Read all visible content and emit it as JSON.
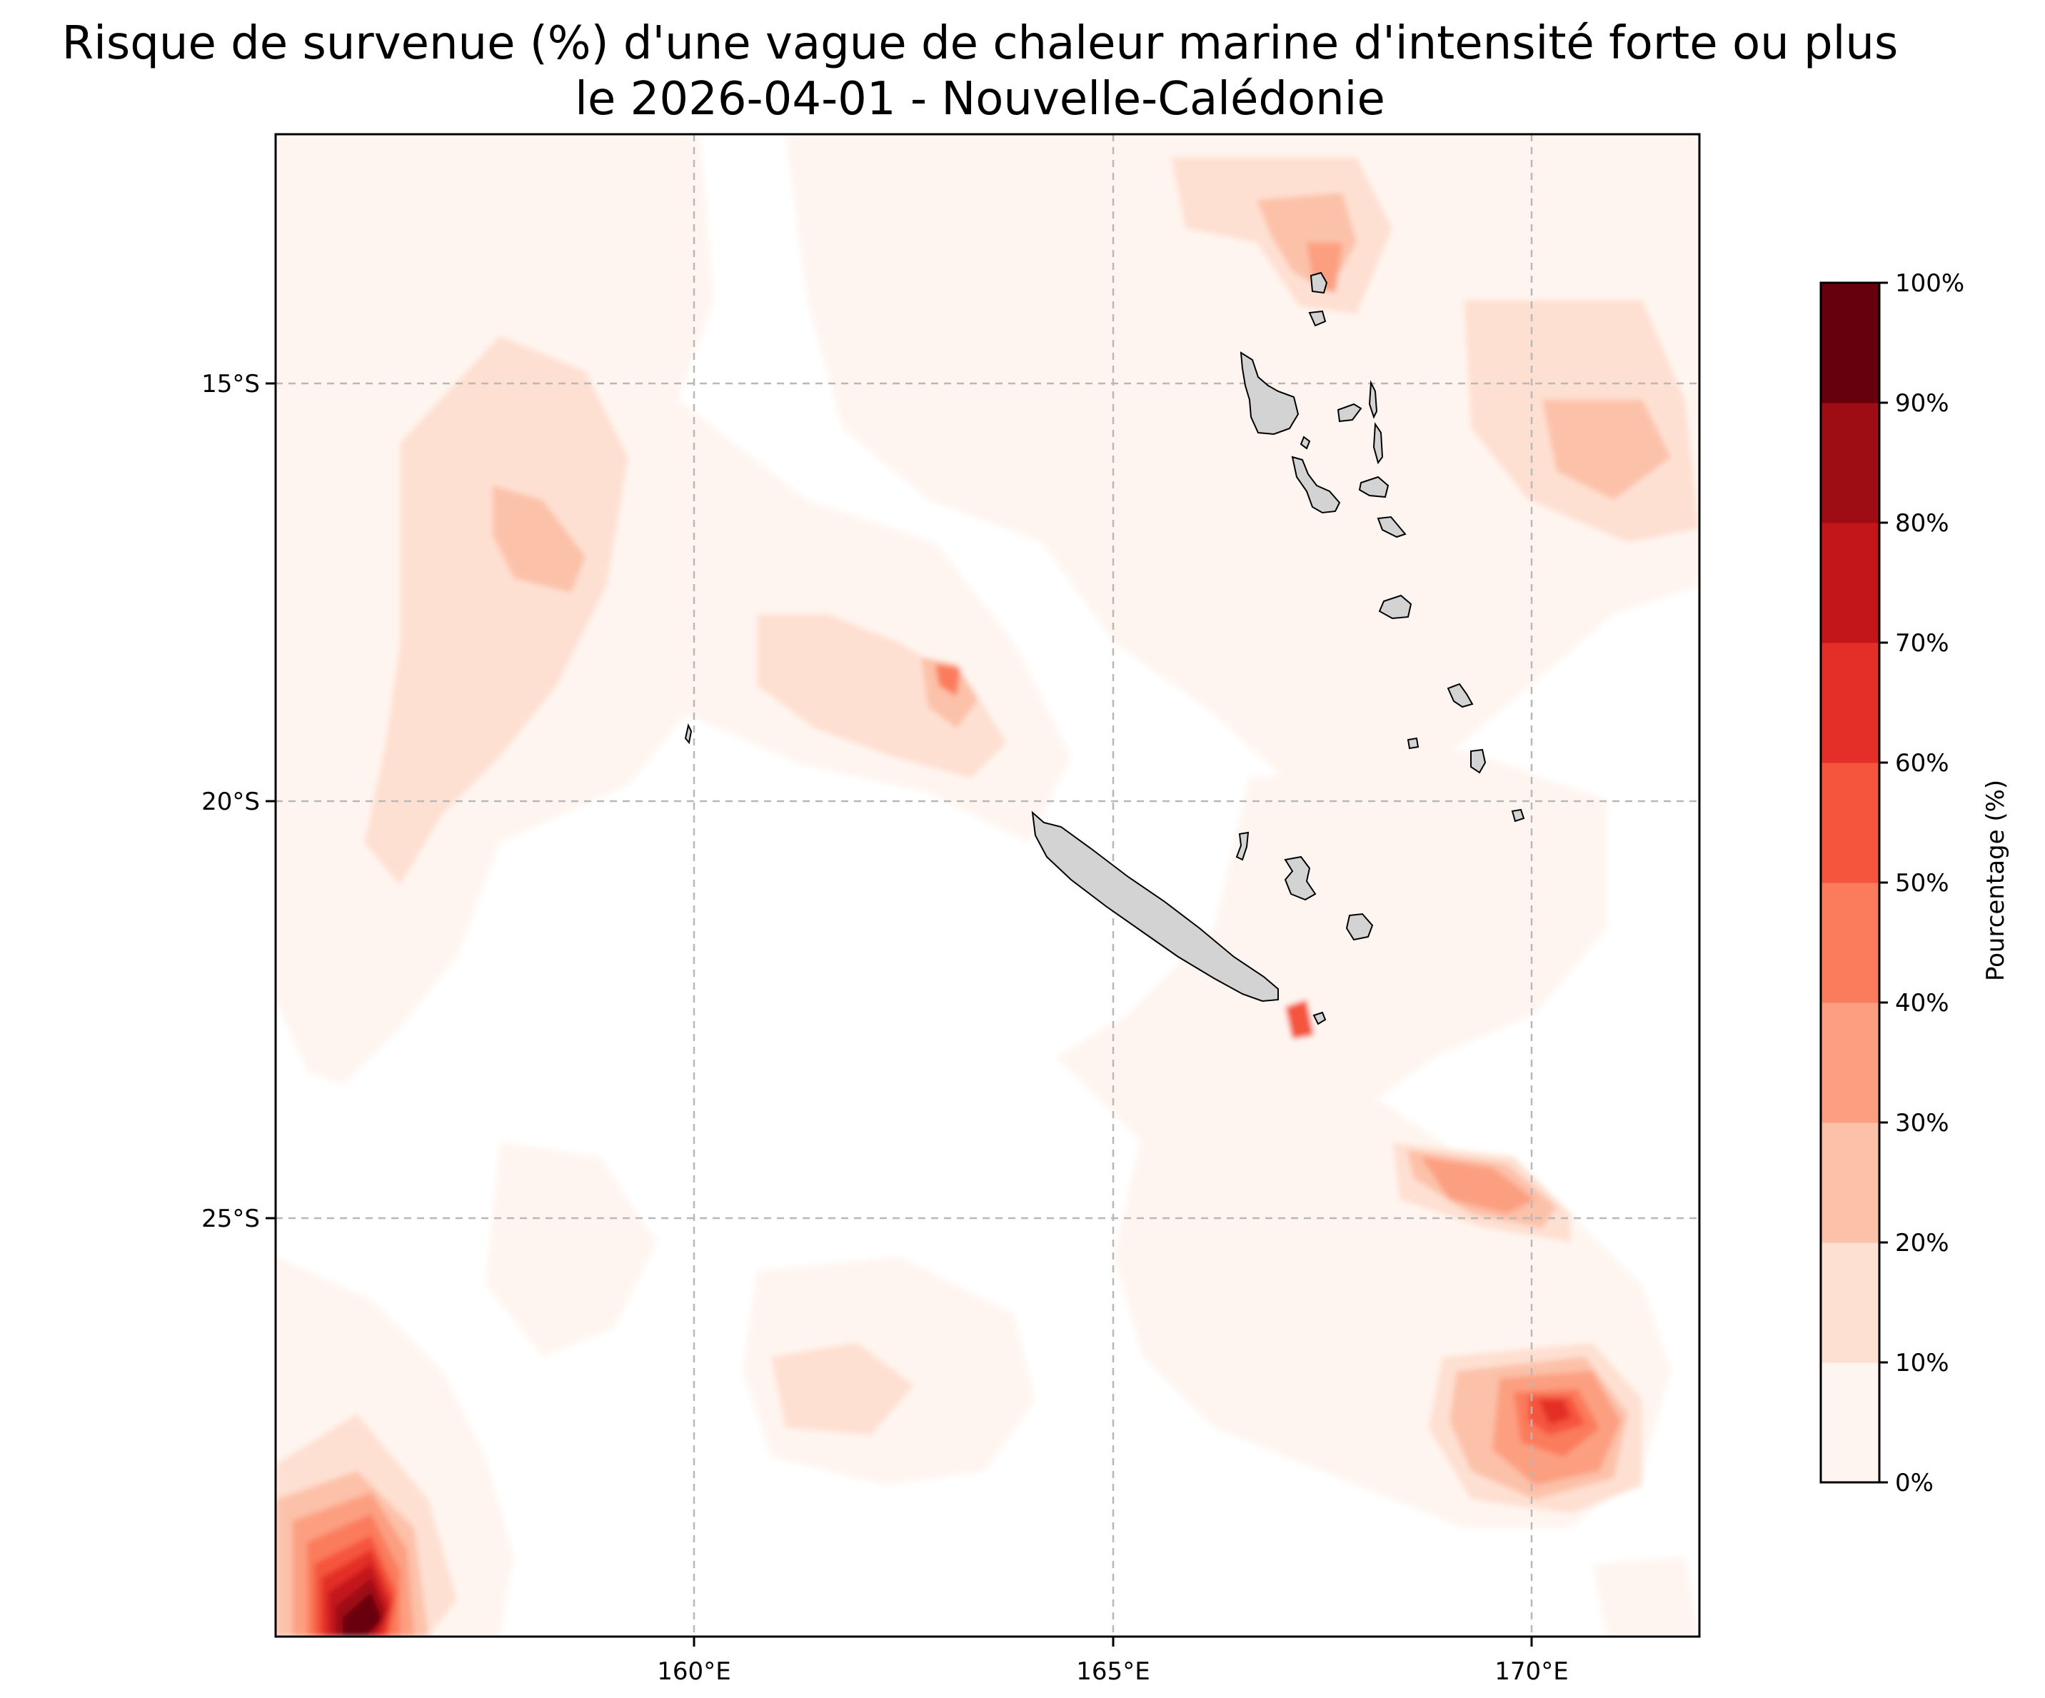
{
  "title": {
    "line1": "Risque de survenue (%) d'une vague de chaleur marine d'intensité forte ou plus",
    "line2": "le 2026-04-01 - Nouvelle-Calédonie"
  },
  "map": {
    "projection": "PlateCarree",
    "lon_range": [
      155,
      172
    ],
    "lat_range": [
      -30,
      -12
    ],
    "gridlines": "dashed",
    "lon_ticks": [
      {
        "value": 160,
        "label": "160°E"
      },
      {
        "value": 165,
        "label": "165°E"
      },
      {
        "value": 170,
        "label": "170°E"
      }
    ],
    "lat_ticks": [
      {
        "value": -15,
        "label": "15°S"
      },
      {
        "value": -20,
        "label": "20°S"
      },
      {
        "value": -25,
        "label": "25°S"
      }
    ],
    "land_color": "#d3d3d3",
    "notable_areas": [
      {
        "name": "Nouvelle-Calédonie (Grande Terre)",
        "lon": 165.6,
        "lat": -21.3
      },
      {
        "name": "Vanuatu",
        "lon": 167.5,
        "lat": -15.8
      },
      {
        "name": "hotspot south-west",
        "lon": 155.8,
        "lat": -29.5,
        "percent_max": 100
      },
      {
        "name": "hotspot south-east",
        "lon": 170.2,
        "lat": -27.2,
        "percent_max": 70
      }
    ]
  },
  "colorbar": {
    "label": "Pourcentage (%)",
    "position": "right",
    "levels": [
      {
        "label": "0%",
        "color": "#fff5f0"
      },
      {
        "label": "10%",
        "color": "#fee0d2"
      },
      {
        "label": "20%",
        "color": "#fcc1a9"
      },
      {
        "label": "30%",
        "color": "#fc9f81"
      },
      {
        "label": "40%",
        "color": "#fb7c5c"
      },
      {
        "label": "50%",
        "color": "#f5553c"
      },
      {
        "label": "60%",
        "color": "#e32f27"
      },
      {
        "label": "70%",
        "color": "#c3161b"
      },
      {
        "label": "80%",
        "color": "#9e0d14"
      },
      {
        "label": "90%",
        "color": "#67000d"
      },
      {
        "label": "100%",
        "color": null
      }
    ]
  }
}
